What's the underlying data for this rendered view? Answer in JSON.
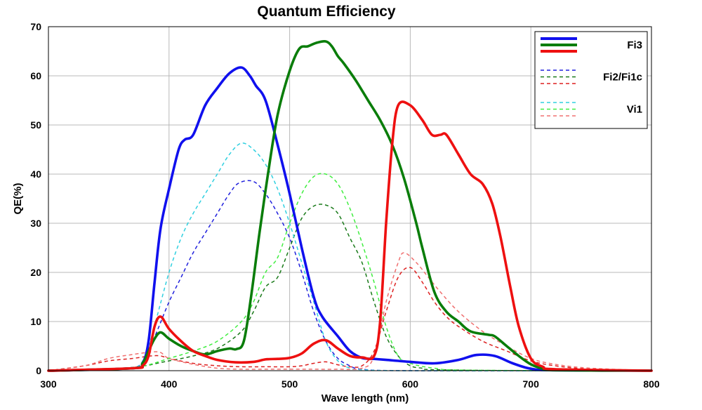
{
  "chart_data": {
    "type": "line",
    "title": "Quantum Efficiency",
    "xlabel": "Wave length (nm)",
    "ylabel": "QE(%)",
    "xlim": [
      300,
      800
    ],
    "ylim": [
      0,
      70
    ],
    "x_ticks": [
      300,
      400,
      500,
      600,
      700,
      800
    ],
    "y_ticks": [
      0,
      10,
      20,
      30,
      40,
      50,
      60,
      70
    ],
    "x_tick_labels": [
      "300",
      "400",
      "500",
      "600",
      "700",
      "800"
    ],
    "y_tick_labels": [
      "0",
      "10",
      "20",
      "30",
      "40",
      "50",
      "60",
      "70"
    ],
    "grid": true,
    "legend": {
      "placement": "top-right",
      "groups": [
        {
          "label": "Fi3",
          "style": "solid",
          "colors": [
            "#1010ee",
            "#0a7d0a",
            "#ee1010"
          ]
        },
        {
          "label": "Fi2/Fi1c",
          "style": "dashed",
          "colors": [
            "#2020dd",
            "#1a7a1a",
            "#dd2020"
          ]
        },
        {
          "label": "Vi1",
          "style": "dashed",
          "colors": [
            "#30d0e0",
            "#40ee40",
            "#f07070"
          ]
        }
      ]
    },
    "series": [
      {
        "group": "Fi3",
        "channel": "blue",
        "color": "#1010ee",
        "style": "solid",
        "points": [
          [
            300,
            0
          ],
          [
            370,
            0.5
          ],
          [
            378,
            1.5
          ],
          [
            383,
            6
          ],
          [
            388,
            18
          ],
          [
            393,
            29
          ],
          [
            400,
            37
          ],
          [
            408,
            45
          ],
          [
            413,
            47
          ],
          [
            420,
            48
          ],
          [
            430,
            54
          ],
          [
            440,
            57.5
          ],
          [
            450,
            60.5
          ],
          [
            460,
            61.7
          ],
          [
            467,
            60
          ],
          [
            472,
            58
          ],
          [
            480,
            55
          ],
          [
            490,
            46
          ],
          [
            500,
            36
          ],
          [
            510,
            25
          ],
          [
            520,
            15
          ],
          [
            527,
            11
          ],
          [
            540,
            7
          ],
          [
            550,
            4
          ],
          [
            560,
            2.6
          ],
          [
            570,
            2.4
          ],
          [
            580,
            2.2
          ],
          [
            600,
            1.8
          ],
          [
            620,
            1.5
          ],
          [
            640,
            2.2
          ],
          [
            655,
            3.2
          ],
          [
            670,
            3
          ],
          [
            685,
            1.5
          ],
          [
            700,
            0.4
          ],
          [
            720,
            0.1
          ],
          [
            800,
            0
          ]
        ]
      },
      {
        "group": "Fi3",
        "channel": "green",
        "color": "#0a7d0a",
        "style": "solid",
        "points": [
          [
            300,
            0
          ],
          [
            370,
            0.5
          ],
          [
            378,
            1.5
          ],
          [
            383,
            4
          ],
          [
            388,
            6.5
          ],
          [
            393,
            7.8
          ],
          [
            400,
            6.5
          ],
          [
            410,
            5
          ],
          [
            420,
            4
          ],
          [
            430,
            3.3
          ],
          [
            440,
            4
          ],
          [
            450,
            4.5
          ],
          [
            456,
            4.4
          ],
          [
            462,
            6
          ],
          [
            468,
            15
          ],
          [
            475,
            28
          ],
          [
            482,
            40
          ],
          [
            490,
            52
          ],
          [
            500,
            61
          ],
          [
            508,
            65.5
          ],
          [
            515,
            66
          ],
          [
            522,
            66.7
          ],
          [
            530,
            67
          ],
          [
            535,
            66
          ],
          [
            540,
            64
          ],
          [
            545,
            62.5
          ],
          [
            555,
            59
          ],
          [
            565,
            55
          ],
          [
            575,
            51
          ],
          [
            585,
            46
          ],
          [
            595,
            39
          ],
          [
            605,
            30
          ],
          [
            610,
            25
          ],
          [
            620,
            16
          ],
          [
            630,
            12
          ],
          [
            640,
            10
          ],
          [
            650,
            8
          ],
          [
            665,
            7.3
          ],
          [
            670,
            7
          ],
          [
            680,
            5
          ],
          [
            690,
            3
          ],
          [
            700,
            1.3
          ],
          [
            710,
            0.4
          ],
          [
            720,
            0.1
          ],
          [
            800,
            0
          ]
        ]
      },
      {
        "group": "Fi3",
        "channel": "red",
        "color": "#ee1010",
        "style": "solid",
        "points": [
          [
            300,
            0
          ],
          [
            370,
            0.5
          ],
          [
            378,
            1
          ],
          [
            383,
            3
          ],
          [
            388,
            9
          ],
          [
            393,
            11
          ],
          [
            400,
            8.5
          ],
          [
            410,
            6
          ],
          [
            420,
            4
          ],
          [
            430,
            3
          ],
          [
            440,
            2.2
          ],
          [
            455,
            1.7
          ],
          [
            470,
            1.8
          ],
          [
            480,
            2.3
          ],
          [
            490,
            2.4
          ],
          [
            500,
            2.6
          ],
          [
            510,
            3.5
          ],
          [
            520,
            5.5
          ],
          [
            530,
            6.2
          ],
          [
            540,
            4.5
          ],
          [
            550,
            3
          ],
          [
            560,
            2.7
          ],
          [
            570,
            3
          ],
          [
            575,
            10
          ],
          [
            580,
            30
          ],
          [
            585,
            46
          ],
          [
            590,
            54
          ],
          [
            600,
            54
          ],
          [
            610,
            51
          ],
          [
            618,
            48
          ],
          [
            625,
            48
          ],
          [
            630,
            48
          ],
          [
            640,
            44
          ],
          [
            650,
            40
          ],
          [
            660,
            38
          ],
          [
            668,
            34
          ],
          [
            675,
            27
          ],
          [
            683,
            17
          ],
          [
            690,
            9
          ],
          [
            700,
            2.5
          ],
          [
            710,
            0.8
          ],
          [
            720,
            0.3
          ],
          [
            800,
            0
          ]
        ]
      },
      {
        "group": "Fi2/Fi1c",
        "channel": "blue",
        "color": "#2020dd",
        "style": "dashed",
        "points": [
          [
            300,
            0
          ],
          [
            360,
            0.5
          ],
          [
            375,
            1
          ],
          [
            383,
            4
          ],
          [
            390,
            8
          ],
          [
            400,
            14
          ],
          [
            410,
            19
          ],
          [
            420,
            24
          ],
          [
            430,
            28
          ],
          [
            440,
            32
          ],
          [
            450,
            36
          ],
          [
            458,
            38.2
          ],
          [
            470,
            38.5
          ],
          [
            480,
            36
          ],
          [
            490,
            32
          ],
          [
            500,
            27
          ],
          [
            510,
            20
          ],
          [
            520,
            12
          ],
          [
            530,
            6
          ],
          [
            540,
            2.5
          ],
          [
            550,
            1
          ],
          [
            560,
            0.3
          ],
          [
            600,
            0
          ],
          [
            800,
            0
          ]
        ]
      },
      {
        "group": "Fi2/Fi1c",
        "channel": "green",
        "color": "#1a7a1a",
        "style": "dashed",
        "points": [
          [
            300,
            0
          ],
          [
            360,
            0.5
          ],
          [
            380,
            1
          ],
          [
            390,
            1.5
          ],
          [
            400,
            2
          ],
          [
            420,
            3
          ],
          [
            440,
            4.5
          ],
          [
            460,
            8
          ],
          [
            470,
            12
          ],
          [
            480,
            17
          ],
          [
            490,
            19
          ],
          [
            500,
            25
          ],
          [
            510,
            31
          ],
          [
            520,
            33.5
          ],
          [
            530,
            33.7
          ],
          [
            540,
            32
          ],
          [
            550,
            27
          ],
          [
            560,
            22
          ],
          [
            570,
            14
          ],
          [
            580,
            7
          ],
          [
            590,
            3
          ],
          [
            600,
            1
          ],
          [
            610,
            0.5
          ],
          [
            620,
            0.2
          ],
          [
            700,
            0
          ],
          [
            800,
            0
          ]
        ]
      },
      {
        "group": "Fi2/Fi1c",
        "channel": "red",
        "color": "#dd2020",
        "style": "dashed",
        "points": [
          [
            300,
            0
          ],
          [
            330,
            1
          ],
          [
            350,
            2
          ],
          [
            370,
            2.5
          ],
          [
            385,
            3
          ],
          [
            393,
            3
          ],
          [
            400,
            2.5
          ],
          [
            420,
            1.5
          ],
          [
            440,
            1
          ],
          [
            460,
            0.8
          ],
          [
            480,
            0.8
          ],
          [
            500,
            0.8
          ],
          [
            510,
            1
          ],
          [
            520,
            1.5
          ],
          [
            530,
            1.8
          ],
          [
            540,
            1.2
          ],
          [
            550,
            0.8
          ],
          [
            560,
            1
          ],
          [
            570,
            4
          ],
          [
            580,
            12
          ],
          [
            590,
            19
          ],
          [
            600,
            21
          ],
          [
            610,
            18
          ],
          [
            620,
            14
          ],
          [
            630,
            11
          ],
          [
            640,
            9
          ],
          [
            660,
            6
          ],
          [
            680,
            4
          ],
          [
            700,
            2
          ],
          [
            720,
            1
          ],
          [
            750,
            0.3
          ],
          [
            800,
            0
          ]
        ]
      },
      {
        "group": "Vi1",
        "channel": "blue",
        "color": "#30d0e0",
        "style": "dashed",
        "points": [
          [
            300,
            0
          ],
          [
            360,
            0.3
          ],
          [
            375,
            1
          ],
          [
            383,
            5
          ],
          [
            390,
            11
          ],
          [
            400,
            20
          ],
          [
            410,
            27
          ],
          [
            420,
            32
          ],
          [
            430,
            36
          ],
          [
            440,
            40
          ],
          [
            450,
            44
          ],
          [
            460,
            46.3
          ],
          [
            470,
            45
          ],
          [
            480,
            42
          ],
          [
            490,
            37
          ],
          [
            500,
            30
          ],
          [
            510,
            22
          ],
          [
            520,
            14
          ],
          [
            530,
            6
          ],
          [
            540,
            2
          ],
          [
            550,
            0.5
          ],
          [
            560,
            0.2
          ],
          [
            600,
            0
          ],
          [
            800,
            0
          ]
        ]
      },
      {
        "group": "Vi1",
        "channel": "green",
        "color": "#40ee40",
        "style": "dashed",
        "points": [
          [
            300,
            0
          ],
          [
            360,
            0.3
          ],
          [
            380,
            1
          ],
          [
            400,
            2.5
          ],
          [
            420,
            4
          ],
          [
            440,
            6
          ],
          [
            460,
            10
          ],
          [
            470,
            14
          ],
          [
            480,
            20
          ],
          [
            490,
            23
          ],
          [
            500,
            30
          ],
          [
            510,
            36
          ],
          [
            520,
            39.5
          ],
          [
            530,
            40
          ],
          [
            540,
            38
          ],
          [
            550,
            33
          ],
          [
            560,
            26
          ],
          [
            570,
            18
          ],
          [
            580,
            9
          ],
          [
            590,
            3
          ],
          [
            600,
            1.5
          ],
          [
            620,
            0.5
          ],
          [
            650,
            0.1
          ],
          [
            800,
            0
          ]
        ]
      },
      {
        "group": "Vi1",
        "channel": "red",
        "color": "#f07070",
        "style": "dashed",
        "points": [
          [
            300,
            0
          ],
          [
            330,
            1
          ],
          [
            350,
            2.5
          ],
          [
            370,
            3.3
          ],
          [
            385,
            3.8
          ],
          [
            393,
            3.7
          ],
          [
            400,
            2.5
          ],
          [
            420,
            1.3
          ],
          [
            440,
            0.5
          ],
          [
            460,
            0.3
          ],
          [
            480,
            0.3
          ],
          [
            500,
            0.3
          ],
          [
            520,
            0.3
          ],
          [
            540,
            0.3
          ],
          [
            560,
            0.5
          ],
          [
            570,
            3
          ],
          [
            580,
            14
          ],
          [
            590,
            22
          ],
          [
            595,
            24
          ],
          [
            605,
            22
          ],
          [
            615,
            19
          ],
          [
            625,
            16
          ],
          [
            640,
            12
          ],
          [
            660,
            8
          ],
          [
            680,
            5
          ],
          [
            700,
            2.5
          ],
          [
            720,
            1.3
          ],
          [
            750,
            0.5
          ],
          [
            800,
            0
          ]
        ]
      }
    ]
  }
}
